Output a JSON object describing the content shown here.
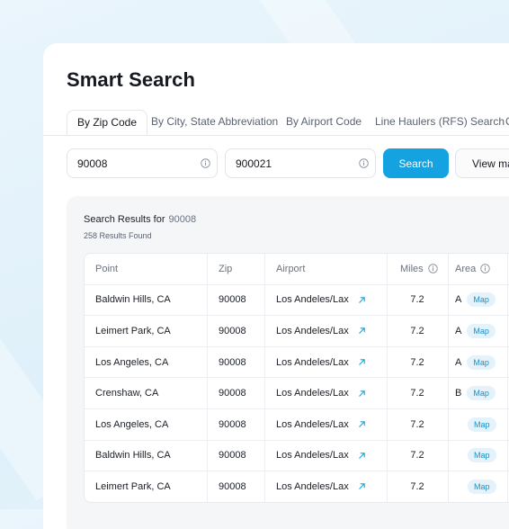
{
  "page": {
    "title": "Smart Search"
  },
  "tabs": [
    {
      "label": "By Zip Code",
      "active": true
    },
    {
      "label": "By City, State Abbreviation"
    },
    {
      "label": "By Airport Code"
    },
    {
      "label": "Line Haulers (RFS) Search"
    },
    {
      "label": "C"
    }
  ],
  "search": {
    "zip_from": "90008",
    "zip_to": "900021",
    "search_label": "Search",
    "view_map_label": "View ma"
  },
  "results": {
    "label": "Search Results for",
    "query": "90008",
    "count_text": "258 Results Found"
  },
  "table": {
    "columns": [
      "Point",
      "Zip",
      "Airport",
      "Miles",
      "Area"
    ],
    "map_label": "Map",
    "rows": [
      {
        "point": "Baldwin Hills, CA",
        "zip": "90008",
        "airport": "Los Andeles/Lax",
        "miles": "7.2",
        "area": "A"
      },
      {
        "point": "Leimert Park, CA",
        "zip": "90008",
        "airport": "Los Andeles/Lax",
        "miles": "7.2",
        "area": "A"
      },
      {
        "point": "Los Angeles, CA",
        "zip": "90008",
        "airport": "Los Andeles/Lax",
        "miles": "7.2",
        "area": "A"
      },
      {
        "point": "Crenshaw, CA",
        "zip": "90008",
        "airport": "Los Andeles/Lax",
        "miles": "7.2",
        "area": "B"
      },
      {
        "point": "Los Angeles, CA",
        "zip": "90008",
        "airport": "Los Andeles/Lax",
        "miles": "7.2",
        "area": ""
      },
      {
        "point": "Baldwin Hills, CA",
        "zip": "90008",
        "airport": "Los Andeles/Lax",
        "miles": "7.2",
        "area": ""
      },
      {
        "point": "Leimert Park, CA",
        "zip": "90008",
        "airport": "Los Andeles/Lax",
        "miles": "7.2",
        "area": ""
      }
    ]
  },
  "colors": {
    "accent": "#14a3e0",
    "pill_bg": "#e3f2fb",
    "pill_text": "#1a8fc9",
    "background": "#dff0fa"
  },
  "icons": {
    "info": "info-icon",
    "external": "external-link-icon"
  }
}
